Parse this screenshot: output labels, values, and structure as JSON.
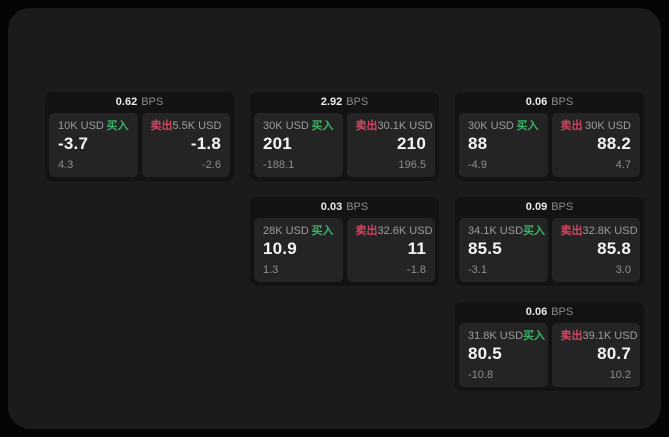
{
  "theme": {
    "outer_bg": "#050505",
    "panel_bg": "#1b1b1b",
    "card_bg": "#131313",
    "subpanel_bg": "#242424",
    "buy_color": "#3bb066",
    "sell_color": "#cf4660"
  },
  "labels": {
    "buy": "买入",
    "sell": "卖出",
    "bps_unit": "BPS"
  },
  "cards": [
    {
      "bps": "0.62",
      "buy": {
        "notional": "10K USD",
        "price": "-3.7",
        "delta": "4.3"
      },
      "sell": {
        "notional": "5.5K USD",
        "price": "-1.8",
        "delta": "-2.6"
      }
    },
    {
      "bps": "2.92",
      "buy": {
        "notional": "30K USD",
        "price": "201",
        "delta": "-188.1"
      },
      "sell": {
        "notional": "30.1K USD",
        "price": "210",
        "delta": "196.5"
      }
    },
    {
      "bps": "0.06",
      "buy": {
        "notional": "30K USD",
        "price": "88",
        "delta": "-4.9"
      },
      "sell": {
        "notional": "30K USD",
        "price": "88.2",
        "delta": "4.7"
      }
    },
    {
      "bps": "0.03",
      "buy": {
        "notional": "28K USD",
        "price": "10.9",
        "delta": "1.3"
      },
      "sell": {
        "notional": "32.6K USD",
        "price": "11",
        "delta": "-1.8"
      }
    },
    {
      "bps": "0.09",
      "buy": {
        "notional": "34.1K USD",
        "price": "85.5",
        "delta": "-3.1"
      },
      "sell": {
        "notional": "32.8K USD",
        "price": "85.8",
        "delta": "3.0"
      }
    },
    {
      "bps": "0.06",
      "buy": {
        "notional": "31.8K USD",
        "price": "80.5",
        "delta": "-10.8"
      },
      "sell": {
        "notional": "39.1K USD",
        "price": "80.7",
        "delta": "10.2"
      }
    }
  ]
}
